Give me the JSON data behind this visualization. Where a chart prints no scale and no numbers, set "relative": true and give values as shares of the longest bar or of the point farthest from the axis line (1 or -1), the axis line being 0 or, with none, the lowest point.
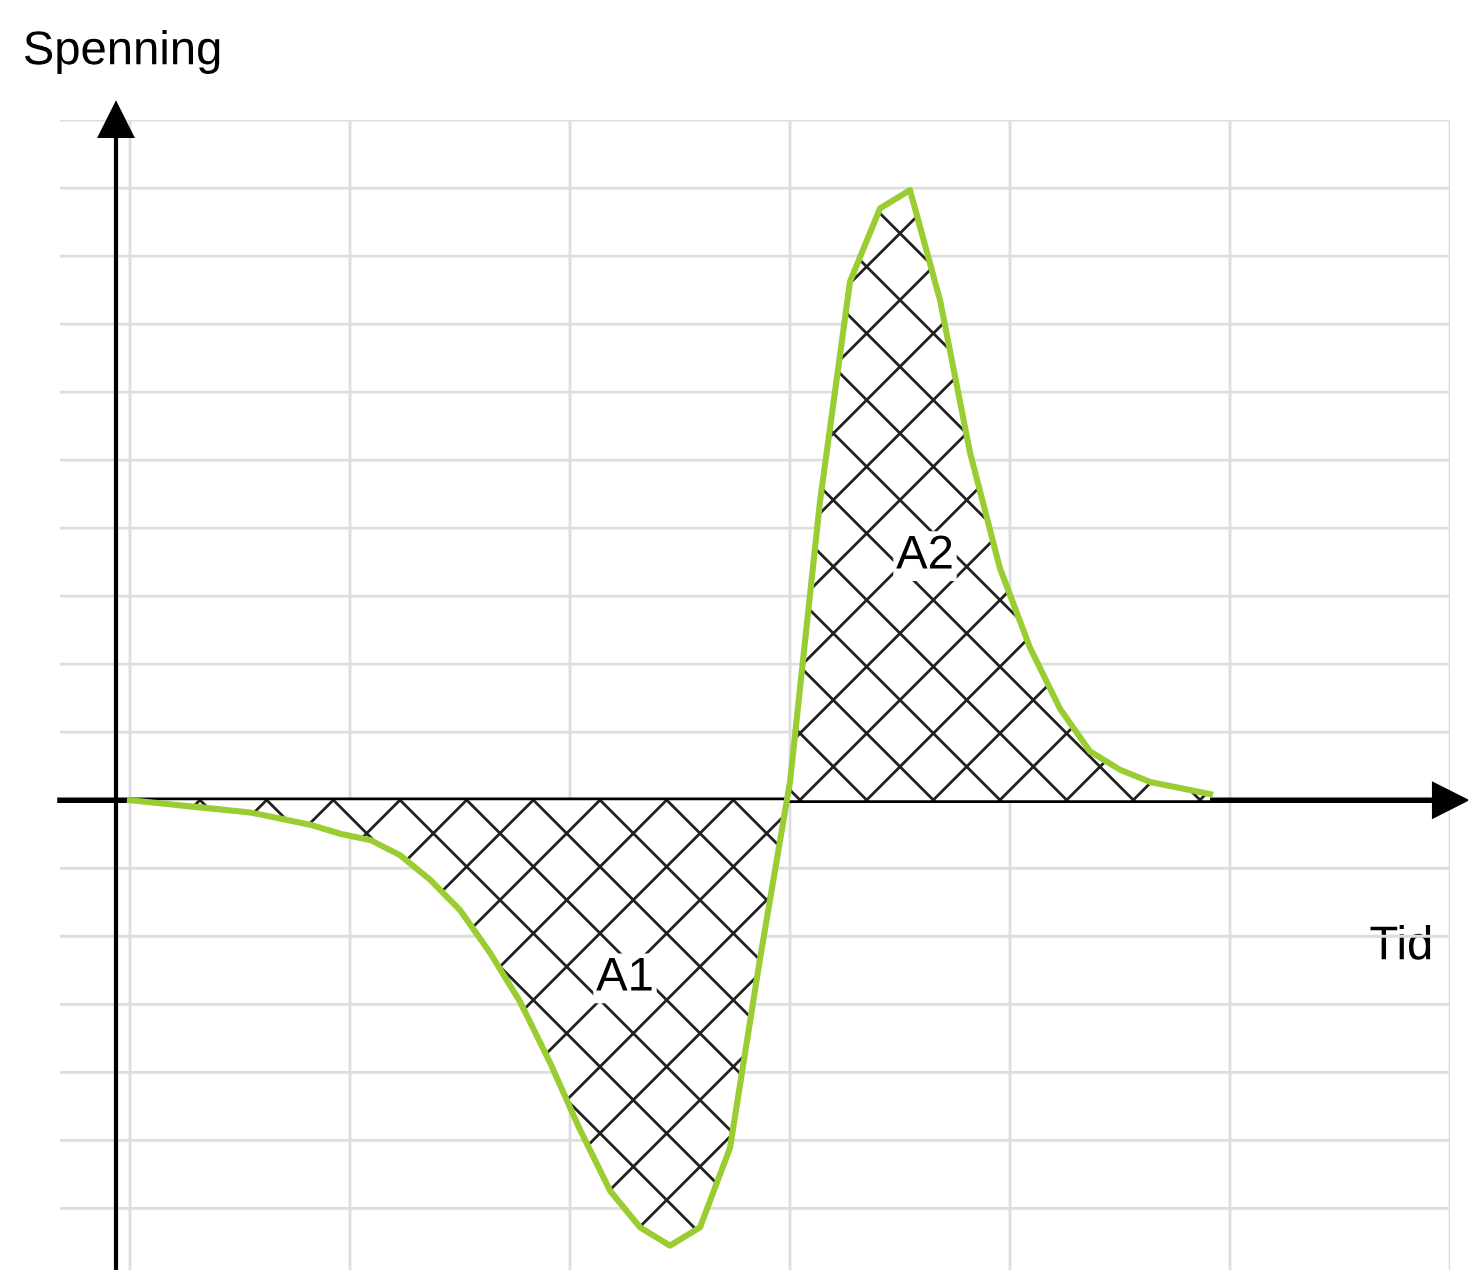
{
  "chart_data": {
    "type": "area",
    "relative": true,
    "xlabel": "Tid",
    "ylabel": "Spenning",
    "categories": [
      null,
      null,
      null,
      null,
      null,
      null,
      null,
      null,
      null,
      null,
      null,
      null,
      null,
      null,
      null,
      null,
      null,
      null,
      null,
      null,
      null,
      null,
      null,
      null,
      null,
      null,
      null,
      null,
      null,
      null,
      null,
      null,
      null,
      null,
      null,
      null,
      null
    ],
    "series": [
      {
        "color": "#9acd32",
        "values": [
          0,
          -0.005,
          -0.01,
          -0.015,
          -0.02,
          -0.03,
          -0.04,
          -0.055,
          -0.065,
          -0.09,
          -0.13,
          -0.18,
          -0.25,
          -0.33,
          -0.43,
          -0.54,
          -0.64,
          -0.7,
          -0.73,
          -0.7,
          -0.57,
          -0.26,
          0.03,
          0.49,
          0.85,
          0.97,
          1,
          0.82,
          0.57,
          0.38,
          0.25,
          0.15,
          0.08,
          0.05,
          0.03,
          0.02,
          0.01
        ]
      }
    ],
    "annotations": [
      "A1",
      "A2"
    ],
    "grid": true,
    "tick_labels": false
  }
}
